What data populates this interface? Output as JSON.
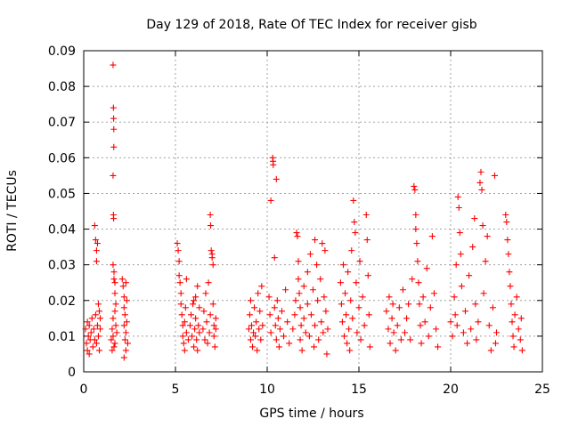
{
  "chart_data": {
    "type": "scatter",
    "title": "Day 129 of 2018, Rate Of TEC Index for receiver gisb",
    "xlabel": "GPS time / hours",
    "ylabel": "ROTI / TECUs",
    "xlim": [
      0,
      25
    ],
    "ylim": [
      0,
      0.09
    ],
    "xticks": [
      0,
      5,
      10,
      15,
      20,
      25
    ],
    "xtick_labels": [
      "0",
      "5",
      "10",
      "15",
      "20",
      "25"
    ],
    "yticks": [
      0,
      0.01,
      0.02,
      0.03,
      0.04,
      0.05,
      0.06,
      0.07,
      0.08,
      0.09
    ],
    "ytick_labels": [
      "0",
      "0.01",
      "0.02",
      "0.03",
      "0.04",
      "0.05",
      "0.06",
      "0.07",
      "0.08",
      "0.09"
    ],
    "grid": true,
    "marker": "+",
    "marker_color": "#ff0000",
    "series": [
      {
        "name": "ROTI",
        "points": [
          [
            0.1,
            0.012
          ],
          [
            0.15,
            0.008
          ],
          [
            0.2,
            0.014
          ],
          [
            0.2,
            0.006
          ],
          [
            0.25,
            0.01
          ],
          [
            0.3,
            0.013
          ],
          [
            0.3,
            0.005
          ],
          [
            0.35,
            0.009
          ],
          [
            0.4,
            0.011
          ],
          [
            0.45,
            0.015
          ],
          [
            0.5,
            0.007
          ],
          [
            0.55,
            0.012
          ],
          [
            0.6,
            0.009
          ],
          [
            0.65,
            0.016
          ],
          [
            0.7,
            0.008
          ],
          [
            0.75,
            0.013
          ],
          [
            0.8,
            0.01
          ],
          [
            0.85,
            0.006
          ],
          [
            0.9,
            0.012
          ],
          [
            0.6,
            0.041
          ],
          [
            0.65,
            0.037
          ],
          [
            0.7,
            0.034
          ],
          [
            0.7,
            0.031
          ],
          [
            0.75,
            0.036
          ],
          [
            0.8,
            0.019
          ],
          [
            0.85,
            0.017
          ],
          [
            0.9,
            0.015
          ],
          [
            1.5,
            0.009
          ],
          [
            1.55,
            0.012
          ],
          [
            1.55,
            0.006
          ],
          [
            1.6,
            0.015
          ],
          [
            1.6,
            0.01
          ],
          [
            1.6,
            0.086
          ],
          [
            1.62,
            0.074
          ],
          [
            1.63,
            0.071
          ],
          [
            1.64,
            0.068
          ],
          [
            1.64,
            0.063
          ],
          [
            1.6,
            0.055
          ],
          [
            1.62,
            0.044
          ],
          [
            1.63,
            0.043
          ],
          [
            1.6,
            0.03
          ],
          [
            1.65,
            0.028
          ],
          [
            1.65,
            0.026
          ],
          [
            1.7,
            0.025
          ],
          [
            1.7,
            0.022
          ],
          [
            1.75,
            0.019
          ],
          [
            1.7,
            0.017
          ],
          [
            1.75,
            0.013
          ],
          [
            1.7,
            0.008
          ],
          [
            1.8,
            0.011
          ],
          [
            1.65,
            0.007
          ],
          [
            2.1,
            0.026
          ],
          [
            2.15,
            0.024
          ],
          [
            2.2,
            0.021
          ],
          [
            2.2,
            0.018
          ],
          [
            2.25,
            0.016
          ],
          [
            2.2,
            0.013
          ],
          [
            2.3,
            0.011
          ],
          [
            2.25,
            0.009
          ],
          [
            2.3,
            0.006
          ],
          [
            2.2,
            0.004
          ],
          [
            2.35,
            0.014
          ],
          [
            2.35,
            0.02
          ],
          [
            2.4,
            0.008
          ],
          [
            2.3,
            0.025
          ],
          [
            5.1,
            0.036
          ],
          [
            5.15,
            0.034
          ],
          [
            5.2,
            0.031
          ],
          [
            5.2,
            0.027
          ],
          [
            5.25,
            0.025
          ],
          [
            5.3,
            0.022
          ],
          [
            5.3,
            0.019
          ],
          [
            5.35,
            0.016
          ],
          [
            5.4,
            0.013
          ],
          [
            5.4,
            0.01
          ],
          [
            5.45,
            0.008
          ],
          [
            5.5,
            0.006
          ],
          [
            5.5,
            0.014
          ],
          [
            5.55,
            0.018
          ],
          [
            5.6,
            0.011
          ],
          [
            5.6,
            0.026
          ],
          [
            5.7,
            0.009
          ],
          [
            5.8,
            0.013
          ],
          [
            5.85,
            0.016
          ],
          [
            5.9,
            0.01
          ],
          [
            5.95,
            0.019
          ],
          [
            6.0,
            0.007
          ],
          [
            6.05,
            0.012
          ],
          [
            6.1,
            0.015
          ],
          [
            6.1,
            0.021
          ],
          [
            6.15,
            0.009
          ],
          [
            6.2,
            0.024
          ],
          [
            6.2,
            0.006
          ],
          [
            6.25,
            0.013
          ],
          [
            6.3,
            0.011
          ],
          [
            6.3,
            0.018
          ],
          [
            6.0,
            0.02
          ],
          [
            6.5,
            0.012
          ],
          [
            6.55,
            0.017
          ],
          [
            6.6,
            0.009
          ],
          [
            6.65,
            0.022
          ],
          [
            6.7,
            0.014
          ],
          [
            6.75,
            0.008
          ],
          [
            6.8,
            0.025
          ],
          [
            6.85,
            0.011
          ],
          [
            6.9,
            0.016
          ],
          [
            6.9,
            0.044
          ],
          [
            6.92,
            0.041
          ],
          [
            6.95,
            0.034
          ],
          [
            7.0,
            0.033
          ],
          [
            7.0,
            0.032
          ],
          [
            7.05,
            0.03
          ],
          [
            7.05,
            0.019
          ],
          [
            7.1,
            0.013
          ],
          [
            7.1,
            0.01
          ],
          [
            7.15,
            0.007
          ],
          [
            7.2,
            0.012
          ],
          [
            7.2,
            0.015
          ],
          [
            9.0,
            0.012
          ],
          [
            9.05,
            0.016
          ],
          [
            9.1,
            0.009
          ],
          [
            9.1,
            0.02
          ],
          [
            9.15,
            0.013
          ],
          [
            9.2,
            0.007
          ],
          [
            9.25,
            0.011
          ],
          [
            9.3,
            0.018
          ],
          [
            9.35,
            0.01
          ],
          [
            9.4,
            0.014
          ],
          [
            9.45,
            0.006
          ],
          [
            9.5,
            0.022
          ],
          [
            9.55,
            0.012
          ],
          [
            9.6,
            0.017
          ],
          [
            9.65,
            0.009
          ],
          [
            9.7,
            0.024
          ],
          [
            9.75,
            0.013
          ],
          [
            10.1,
            0.021
          ],
          [
            10.15,
            0.016
          ],
          [
            10.2,
            0.011
          ],
          [
            10.2,
            0.048
          ],
          [
            10.3,
            0.06
          ],
          [
            10.32,
            0.059
          ],
          [
            10.33,
            0.058
          ],
          [
            10.4,
            0.032
          ],
          [
            10.5,
            0.054
          ],
          [
            10.4,
            0.018
          ],
          [
            10.45,
            0.013
          ],
          [
            10.5,
            0.009
          ],
          [
            10.55,
            0.02
          ],
          [
            10.6,
            0.015
          ],
          [
            10.65,
            0.007
          ],
          [
            10.7,
            0.012
          ],
          [
            10.8,
            0.017
          ],
          [
            10.9,
            0.01
          ],
          [
            11.0,
            0.023
          ],
          [
            11.1,
            0.014
          ],
          [
            11.2,
            0.008
          ],
          [
            11.4,
            0.012
          ],
          [
            11.5,
            0.016
          ],
          [
            11.55,
            0.02
          ],
          [
            11.6,
            0.039
          ],
          [
            11.65,
            0.038
          ],
          [
            11.7,
            0.031
          ],
          [
            11.7,
            0.026
          ],
          [
            11.75,
            0.022
          ],
          [
            11.8,
            0.018
          ],
          [
            11.8,
            0.009
          ],
          [
            11.85,
            0.013
          ],
          [
            11.9,
            0.006
          ],
          [
            12.0,
            0.015
          ],
          [
            12.0,
            0.024
          ],
          [
            12.1,
            0.011
          ],
          [
            12.2,
            0.028
          ],
          [
            12.2,
            0.019
          ],
          [
            12.3,
            0.01
          ],
          [
            12.35,
            0.033
          ],
          [
            12.4,
            0.016
          ],
          [
            12.5,
            0.023
          ],
          [
            12.55,
            0.007
          ],
          [
            12.6,
            0.013
          ],
          [
            12.6,
            0.037
          ],
          [
            12.7,
            0.03
          ],
          [
            12.75,
            0.02
          ],
          [
            12.8,
            0.009
          ],
          [
            12.9,
            0.026
          ],
          [
            12.95,
            0.014
          ],
          [
            13.0,
            0.036
          ],
          [
            13.05,
            0.011
          ],
          [
            13.1,
            0.021
          ],
          [
            13.15,
            0.034
          ],
          [
            13.2,
            0.017
          ],
          [
            13.25,
            0.005
          ],
          [
            13.3,
            0.012
          ],
          [
            14.0,
            0.025
          ],
          [
            14.05,
            0.019
          ],
          [
            14.1,
            0.014
          ],
          [
            14.15,
            0.03
          ],
          [
            14.2,
            0.01
          ],
          [
            14.25,
            0.022
          ],
          [
            14.3,
            0.016
          ],
          [
            14.35,
            0.008
          ],
          [
            14.4,
            0.028
          ],
          [
            14.45,
            0.012
          ],
          [
            14.5,
            0.006
          ],
          [
            14.55,
            0.02
          ],
          [
            14.6,
            0.034
          ],
          [
            14.65,
            0.015
          ],
          [
            14.7,
            0.048
          ],
          [
            14.75,
            0.042
          ],
          [
            14.8,
            0.039
          ],
          [
            14.85,
            0.025
          ],
          [
            14.9,
            0.011
          ],
          [
            15.0,
            0.018
          ],
          [
            15.05,
            0.031
          ],
          [
            15.1,
            0.009
          ],
          [
            15.2,
            0.021
          ],
          [
            15.3,
            0.013
          ],
          [
            15.4,
            0.044
          ],
          [
            15.45,
            0.037
          ],
          [
            15.5,
            0.027
          ],
          [
            15.55,
            0.016
          ],
          [
            15.6,
            0.007
          ],
          [
            16.5,
            0.017
          ],
          [
            16.6,
            0.012
          ],
          [
            16.65,
            0.021
          ],
          [
            16.7,
            0.008
          ],
          [
            16.8,
            0.015
          ],
          [
            16.85,
            0.019
          ],
          [
            16.9,
            0.011
          ],
          [
            17.0,
            0.006
          ],
          [
            17.1,
            0.013
          ],
          [
            17.2,
            0.018
          ],
          [
            17.3,
            0.009
          ],
          [
            17.4,
            0.023
          ],
          [
            17.5,
            0.011
          ],
          [
            17.6,
            0.015
          ],
          [
            17.7,
            0.019
          ],
          [
            17.8,
            0.009
          ],
          [
            17.9,
            0.026
          ],
          [
            18.0,
            0.052
          ],
          [
            18.05,
            0.051
          ],
          [
            18.1,
            0.044
          ],
          [
            18.1,
            0.04
          ],
          [
            18.15,
            0.036
          ],
          [
            18.2,
            0.031
          ],
          [
            18.25,
            0.025
          ],
          [
            18.3,
            0.019
          ],
          [
            18.35,
            0.013
          ],
          [
            18.4,
            0.008
          ],
          [
            18.5,
            0.021
          ],
          [
            18.6,
            0.014
          ],
          [
            18.7,
            0.029
          ],
          [
            18.8,
            0.01
          ],
          [
            18.9,
            0.018
          ],
          [
            19.0,
            0.038
          ],
          [
            19.1,
            0.022
          ],
          [
            19.2,
            0.012
          ],
          [
            19.3,
            0.007
          ],
          [
            20.0,
            0.014
          ],
          [
            20.1,
            0.01
          ],
          [
            20.2,
            0.021
          ],
          [
            20.25,
            0.016
          ],
          [
            20.3,
            0.03
          ],
          [
            20.35,
            0.013
          ],
          [
            20.4,
            0.049
          ],
          [
            20.45,
            0.046
          ],
          [
            20.5,
            0.039
          ],
          [
            20.55,
            0.033
          ],
          [
            20.6,
            0.024
          ],
          [
            20.7,
            0.011
          ],
          [
            20.8,
            0.017
          ],
          [
            20.9,
            0.008
          ],
          [
            21.0,
            0.027
          ],
          [
            21.1,
            0.012
          ],
          [
            21.2,
            0.035
          ],
          [
            21.3,
            0.043
          ],
          [
            21.35,
            0.019
          ],
          [
            21.4,
            0.009
          ],
          [
            21.5,
            0.014
          ],
          [
            21.6,
            0.053
          ],
          [
            21.65,
            0.056
          ],
          [
            21.7,
            0.051
          ],
          [
            21.75,
            0.041
          ],
          [
            21.8,
            0.022
          ],
          [
            21.9,
            0.031
          ],
          [
            22.0,
            0.038
          ],
          [
            22.1,
            0.013
          ],
          [
            22.2,
            0.006
          ],
          [
            22.3,
            0.018
          ],
          [
            22.4,
            0.055
          ],
          [
            22.45,
            0.008
          ],
          [
            22.5,
            0.011
          ],
          [
            23.0,
            0.044
          ],
          [
            23.05,
            0.042
          ],
          [
            23.1,
            0.037
          ],
          [
            23.15,
            0.033
          ],
          [
            23.2,
            0.028
          ],
          [
            23.25,
            0.024
          ],
          [
            23.3,
            0.019
          ],
          [
            23.35,
            0.014
          ],
          [
            23.4,
            0.01
          ],
          [
            23.45,
            0.007
          ],
          [
            23.5,
            0.016
          ],
          [
            23.6,
            0.021
          ],
          [
            23.7,
            0.012
          ],
          [
            23.8,
            0.009
          ],
          [
            23.85,
            0.015
          ],
          [
            23.9,
            0.006
          ]
        ]
      }
    ]
  }
}
